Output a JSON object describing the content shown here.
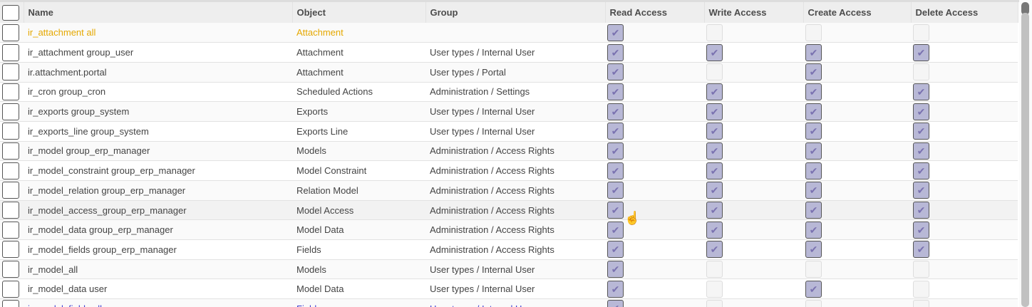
{
  "columns": [
    "Name",
    "Object",
    "Group",
    "Read Access",
    "Write Access",
    "Create Access",
    "Delete Access"
  ],
  "rows": [
    {
      "name": "ir_attachment all",
      "object": "Attachment",
      "group": "",
      "read": true,
      "write": false,
      "create": false,
      "delete": false,
      "style": "warn"
    },
    {
      "name": "ir_attachment group_user",
      "object": "Attachment",
      "group": "User types / Internal User",
      "read": true,
      "write": true,
      "create": true,
      "delete": true
    },
    {
      "name": "ir.attachment.portal",
      "object": "Attachment",
      "group": "User types / Portal",
      "read": true,
      "write": false,
      "create": true,
      "delete": false
    },
    {
      "name": "ir_cron group_cron",
      "object": "Scheduled Actions",
      "group": "Administration / Settings",
      "read": true,
      "write": true,
      "create": true,
      "delete": true
    },
    {
      "name": "ir_exports group_system",
      "object": "Exports",
      "group": "User types / Internal User",
      "read": true,
      "write": true,
      "create": true,
      "delete": true
    },
    {
      "name": "ir_exports_line group_system",
      "object": "Exports Line",
      "group": "User types / Internal User",
      "read": true,
      "write": true,
      "create": true,
      "delete": true
    },
    {
      "name": "ir_model group_erp_manager",
      "object": "Models",
      "group": "Administration / Access Rights",
      "read": true,
      "write": true,
      "create": true,
      "delete": true
    },
    {
      "name": "ir_model_constraint group_erp_manager",
      "object": "Model Constraint",
      "group": "Administration / Access Rights",
      "read": true,
      "write": true,
      "create": true,
      "delete": true
    },
    {
      "name": "ir_model_relation group_erp_manager",
      "object": "Relation Model",
      "group": "Administration / Access Rights",
      "read": true,
      "write": true,
      "create": true,
      "delete": true
    },
    {
      "name": "ir_model_access_group_erp_manager",
      "object": "Model Access",
      "group": "Administration / Access Rights",
      "read": true,
      "write": true,
      "create": true,
      "delete": true,
      "style": "hover"
    },
    {
      "name": "ir_model_data group_erp_manager",
      "object": "Model Data",
      "group": "Administration / Access Rights",
      "read": true,
      "write": true,
      "create": true,
      "delete": true
    },
    {
      "name": "ir_model_fields group_erp_manager",
      "object": "Fields",
      "group": "Administration / Access Rights",
      "read": true,
      "write": true,
      "create": true,
      "delete": true
    },
    {
      "name": "ir_model_all",
      "object": "Models",
      "group": "User types / Internal User",
      "read": true,
      "write": false,
      "create": false,
      "delete": false
    },
    {
      "name": "ir_model_data user",
      "object": "Model Data",
      "group": "User types / Internal User",
      "read": true,
      "write": false,
      "create": true,
      "delete": false
    },
    {
      "name": "ir_model_fields all",
      "object": "Fields",
      "group": "User types / Internal User",
      "read": true,
      "write": false,
      "create": false,
      "delete": false,
      "style": "blue"
    }
  ],
  "check_glyph": "✔"
}
